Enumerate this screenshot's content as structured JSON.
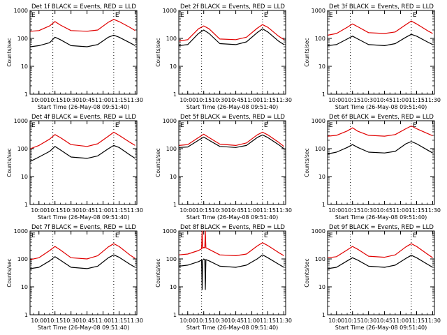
{
  "figure": {
    "x_title": "Start Time (26-May-08 09:51:40)",
    "y_title": "Counts/sec",
    "colors": {
      "events": "#000000",
      "lld": "#e00000",
      "axes": "#000000"
    }
  },
  "chart_data": [
    {
      "type": "line",
      "title": "Det 1f  BLACK = Events, RED = LLD",
      "markers": [
        "E"
      ],
      "x_ticks": [
        "10:00",
        "10:15",
        "10:30",
        "10:45",
        "11:00",
        "11:15",
        "11:30"
      ],
      "y_ticks": [
        "1",
        "10",
        "100",
        "1000"
      ],
      "y_scale": "log",
      "ylim": [
        1,
        1000
      ],
      "xlim": [
        "09:51:40",
        "11:31:40"
      ],
      "series": [
        {
          "name": "Events",
          "color": "#000000",
          "x": [
            "09:52",
            "10:00",
            "10:10",
            "10:15",
            "10:20",
            "10:30",
            "10:45",
            "10:55",
            "11:05",
            "11:10",
            "11:15",
            "11:25",
            "11:30"
          ],
          "y": [
            50,
            55,
            70,
            110,
            90,
            55,
            50,
            60,
            110,
            130,
            110,
            70,
            55
          ]
        },
        {
          "name": "LLD",
          "color": "#e00000",
          "x": [
            "09:52",
            "10:00",
            "10:10",
            "10:15",
            "10:20",
            "10:30",
            "10:45",
            "10:55",
            "11:05",
            "11:10",
            "11:15",
            "11:25",
            "11:30"
          ],
          "y": [
            180,
            190,
            280,
            400,
            300,
            190,
            180,
            200,
            380,
            480,
            400,
            250,
            190
          ]
        }
      ]
    },
    {
      "type": "line",
      "title": "Det 2f  BLACK = Events, RED = LLD",
      "markers": [
        "E"
      ],
      "x_ticks": [
        "10:00",
        "10:15",
        "10:30",
        "10:45",
        "11:00",
        "11:15",
        "11:30"
      ],
      "y_ticks": [
        "1",
        "10",
        "100",
        "1000"
      ],
      "y_scale": "log",
      "ylim": [
        1,
        1000
      ],
      "xlim": [
        "09:51:40",
        "11:31:40"
      ],
      "series": [
        {
          "name": "Events",
          "color": "#000000",
          "x": [
            "09:52",
            "10:00",
            "10:10",
            "10:15",
            "10:20",
            "10:30",
            "10:45",
            "10:55",
            "11:05",
            "11:10",
            "11:15",
            "11:25",
            "11:30"
          ],
          "y": [
            55,
            60,
            150,
            200,
            150,
            65,
            60,
            75,
            160,
            220,
            170,
            80,
            60
          ]
        },
        {
          "name": "LLD",
          "color": "#e00000",
          "x": [
            "09:52",
            "10:00",
            "10:10",
            "10:15",
            "10:20",
            "10:30",
            "10:45",
            "10:55",
            "11:05",
            "11:10",
            "11:15",
            "11:25",
            "11:30"
          ],
          "y": [
            80,
            90,
            220,
            280,
            220,
            95,
            90,
            110,
            230,
            310,
            250,
            120,
            90
          ]
        }
      ]
    },
    {
      "type": "line",
      "title": "Det 3f  BLACK = Events, RED = LLD",
      "markers": [
        "E"
      ],
      "x_ticks": [
        "10:00",
        "10:15",
        "10:30",
        "10:45",
        "11:00",
        "11:15",
        "11:30"
      ],
      "y_ticks": [
        "1",
        "10",
        "100",
        "1000"
      ],
      "y_scale": "log",
      "ylim": [
        1,
        1000
      ],
      "xlim": [
        "09:51:40",
        "11:31:40"
      ],
      "series": [
        {
          "name": "Events",
          "color": "#000000",
          "x": [
            "09:52",
            "10:00",
            "10:10",
            "10:15",
            "10:20",
            "10:30",
            "10:45",
            "10:55",
            "11:05",
            "11:10",
            "11:15",
            "11:25",
            "11:30"
          ],
          "y": [
            55,
            60,
            95,
            120,
            95,
            60,
            55,
            65,
            110,
            140,
            120,
            75,
            60
          ]
        },
        {
          "name": "LLD",
          "color": "#e00000",
          "x": [
            "09:52",
            "10:00",
            "10:10",
            "10:15",
            "10:20",
            "10:30",
            "10:45",
            "10:55",
            "11:05",
            "11:10",
            "11:15",
            "11:25",
            "11:30"
          ],
          "y": [
            130,
            150,
            250,
            330,
            260,
            160,
            150,
            170,
            310,
            420,
            330,
            190,
            150
          ]
        }
      ]
    },
    {
      "type": "line",
      "title": "Det 4f  BLACK = Events, RED = LLD",
      "markers": [
        "E"
      ],
      "x_ticks": [
        "10:00",
        "10:15",
        "10:30",
        "10:45",
        "11:00",
        "11:15",
        "11:30"
      ],
      "y_ticks": [
        "1",
        "10",
        "100",
        "1000"
      ],
      "y_scale": "log",
      "ylim": [
        1,
        1000
      ],
      "xlim": [
        "09:51:40",
        "11:31:40"
      ],
      "series": [
        {
          "name": "Events",
          "color": "#000000",
          "x": [
            "09:52",
            "10:00",
            "10:10",
            "10:15",
            "10:20",
            "10:30",
            "10:45",
            "10:55",
            "11:05",
            "11:10",
            "11:15",
            "11:25",
            "11:30"
          ],
          "y": [
            35,
            50,
            80,
            120,
            90,
            50,
            45,
            55,
            100,
            130,
            110,
            60,
            45
          ]
        },
        {
          "name": "LLD",
          "color": "#e00000",
          "x": [
            "09:52",
            "10:00",
            "10:10",
            "10:15",
            "10:20",
            "10:30",
            "10:45",
            "10:55",
            "11:05",
            "11:10",
            "11:15",
            "11:25",
            "11:30"
          ],
          "y": [
            100,
            130,
            220,
            320,
            250,
            140,
            120,
            150,
            280,
            390,
            300,
            170,
            130
          ]
        }
      ]
    },
    {
      "type": "line",
      "title": "Det 5f  BLACK = Events, RED = LLD",
      "markers": [
        "E"
      ],
      "x_ticks": [
        "10:00",
        "10:15",
        "10:30",
        "10:45",
        "11:00",
        "11:15",
        "11:30"
      ],
      "y_ticks": [
        "1",
        "10",
        "100",
        "1000"
      ],
      "y_scale": "log",
      "ylim": [
        1,
        1000
      ],
      "xlim": [
        "09:51:40",
        "11:31:40"
      ],
      "series": [
        {
          "name": "Events",
          "color": "#000000",
          "x": [
            "09:52",
            "10:00",
            "10:10",
            "10:15",
            "10:20",
            "10:30",
            "10:45",
            "10:55",
            "11:05",
            "11:10",
            "11:15",
            "11:25",
            "11:30"
          ],
          "y": [
            110,
            115,
            200,
            260,
            200,
            120,
            110,
            130,
            250,
            310,
            250,
            140,
            100
          ]
        },
        {
          "name": "LLD",
          "color": "#e00000",
          "x": [
            "09:52",
            "10:00",
            "10:10",
            "10:15",
            "10:20",
            "10:30",
            "10:45",
            "10:55",
            "11:05",
            "11:10",
            "11:15",
            "11:25",
            "11:30"
          ],
          "y": [
            130,
            140,
            250,
            330,
            250,
            145,
            130,
            160,
            310,
            390,
            310,
            170,
            120
          ]
        }
      ]
    },
    {
      "type": "line",
      "title": "Det 6f  BLACK = Events, RED = LLD",
      "markers": [
        "E"
      ],
      "x_ticks": [
        "10:00",
        "10:15",
        "10:30",
        "10:45",
        "11:00",
        "11:15",
        "11:30"
      ],
      "y_ticks": [
        "1",
        "10",
        "100",
        "1000"
      ],
      "y_scale": "log",
      "ylim": [
        1,
        1000
      ],
      "xlim": [
        "09:51:40",
        "11:31:40"
      ],
      "series": [
        {
          "name": "Events",
          "color": "#000000",
          "x": [
            "09:52",
            "10:00",
            "10:10",
            "10:15",
            "10:20",
            "10:30",
            "10:45",
            "10:55",
            "11:05",
            "11:10",
            "11:15",
            "11:25",
            "11:30"
          ],
          "y": [
            65,
            75,
            110,
            140,
            110,
            75,
            70,
            80,
            150,
            180,
            150,
            90,
            70
          ]
        },
        {
          "name": "LLD",
          "color": "#e00000",
          "x": [
            "09:52",
            "10:00",
            "10:10",
            "10:15",
            "10:20",
            "10:30",
            "10:45",
            "10:55",
            "11:05",
            "11:10",
            "11:15",
            "11:25",
            "11:30"
          ],
          "y": [
            280,
            300,
            430,
            560,
            420,
            300,
            280,
            320,
            520,
            650,
            520,
            350,
            290
          ]
        }
      ]
    },
    {
      "type": "line",
      "title": "Det 7f  BLACK = Events, RED = LLD",
      "markers": [
        "E"
      ],
      "x_ticks": [
        "10:00",
        "10:15",
        "10:30",
        "10:45",
        "11:00",
        "11:15",
        "11:30"
      ],
      "y_ticks": [
        "1",
        "10",
        "100",
        "1000"
      ],
      "y_scale": "log",
      "ylim": [
        1,
        1000
      ],
      "xlim": [
        "09:51:40",
        "11:31:40"
      ],
      "series": [
        {
          "name": "Events",
          "color": "#000000",
          "x": [
            "09:52",
            "10:00",
            "10:10",
            "10:15",
            "10:20",
            "10:30",
            "10:45",
            "10:55",
            "11:05",
            "11:10",
            "11:15",
            "11:25",
            "11:30"
          ],
          "y": [
            45,
            50,
            85,
            120,
            90,
            50,
            45,
            55,
            110,
            140,
            115,
            65,
            50
          ]
        },
        {
          "name": "LLD",
          "color": "#e00000",
          "x": [
            "09:52",
            "10:00",
            "10:10",
            "10:15",
            "10:20",
            "10:30",
            "10:45",
            "10:55",
            "11:05",
            "11:10",
            "11:15",
            "11:25",
            "11:30"
          ],
          "y": [
            95,
            110,
            200,
            280,
            210,
            110,
            100,
            130,
            270,
            350,
            280,
            140,
            105
          ]
        }
      ]
    },
    {
      "type": "line",
      "title": "Det 8f  BLACK = Events, RED = LLD",
      "markers": [
        "E"
      ],
      "x_ticks": [
        "10:00",
        "10:15",
        "10:30",
        "10:45",
        "11:00",
        "11:15",
        "11:30"
      ],
      "y_ticks": [
        "1",
        "10",
        "100",
        "1000"
      ],
      "y_scale": "log",
      "ylim": [
        1,
        1000
      ],
      "xlim": [
        "09:51:40",
        "11:31:40"
      ],
      "series": [
        {
          "name": "Events",
          "color": "#000000",
          "x": [
            "09:52",
            "10:00",
            "10:10",
            "10:13",
            "10:13.5",
            "10:14",
            "10:15",
            "10:16",
            "10:16.5",
            "10:17",
            "10:20",
            "10:30",
            "10:45",
            "10:55",
            "11:05",
            "11:10",
            "11:15",
            "11:25",
            "11:30"
          ],
          "y": [
            55,
            60,
            80,
            90,
            8,
            90,
            100,
            95,
            8,
            95,
            85,
            55,
            50,
            60,
            100,
            140,
            110,
            65,
            50
          ]
        },
        {
          "name": "LLD",
          "color": "#e00000",
          "x": [
            "09:52",
            "10:00",
            "10:10",
            "10:13",
            "10:13.5",
            "10:14",
            "10:15",
            "10:16",
            "10:16.5",
            "10:17",
            "10:20",
            "10:30",
            "10:45",
            "10:55",
            "11:05",
            "11:10",
            "11:15",
            "11:25",
            "11:30"
          ],
          "y": [
            140,
            150,
            200,
            230,
            1000,
            240,
            260,
            250,
            1000,
            250,
            220,
            140,
            130,
            150,
            290,
            380,
            300,
            170,
            130
          ]
        }
      ]
    },
    {
      "type": "line",
      "title": "Det 9f  BLACK = Events, RED = LLD",
      "markers": [
        "E"
      ],
      "x_ticks": [
        "10:00",
        "10:15",
        "10:30",
        "10:45",
        "11:00",
        "11:15",
        "11:30"
      ],
      "y_ticks": [
        "1",
        "10",
        "100",
        "1000"
      ],
      "y_scale": "log",
      "ylim": [
        1,
        1000
      ],
      "xlim": [
        "09:51:40",
        "11:31:40"
      ],
      "series": [
        {
          "name": "Events",
          "color": "#000000",
          "x": [
            "09:52",
            "10:00",
            "10:10",
            "10:15",
            "10:20",
            "10:30",
            "10:45",
            "10:55",
            "11:05",
            "11:10",
            "11:15",
            "11:25",
            "11:30"
          ],
          "y": [
            45,
            50,
            85,
            110,
            90,
            55,
            50,
            60,
            105,
            135,
            110,
            65,
            50
          ]
        },
        {
          "name": "LLD",
          "color": "#e00000",
          "x": [
            "09:52",
            "10:00",
            "10:10",
            "10:15",
            "10:20",
            "10:30",
            "10:45",
            "10:55",
            "11:05",
            "11:10",
            "11:15",
            "11:25",
            "11:30"
          ],
          "y": [
            110,
            120,
            210,
            280,
            220,
            125,
            115,
            140,
            270,
            350,
            280,
            150,
            110
          ]
        }
      ]
    }
  ]
}
